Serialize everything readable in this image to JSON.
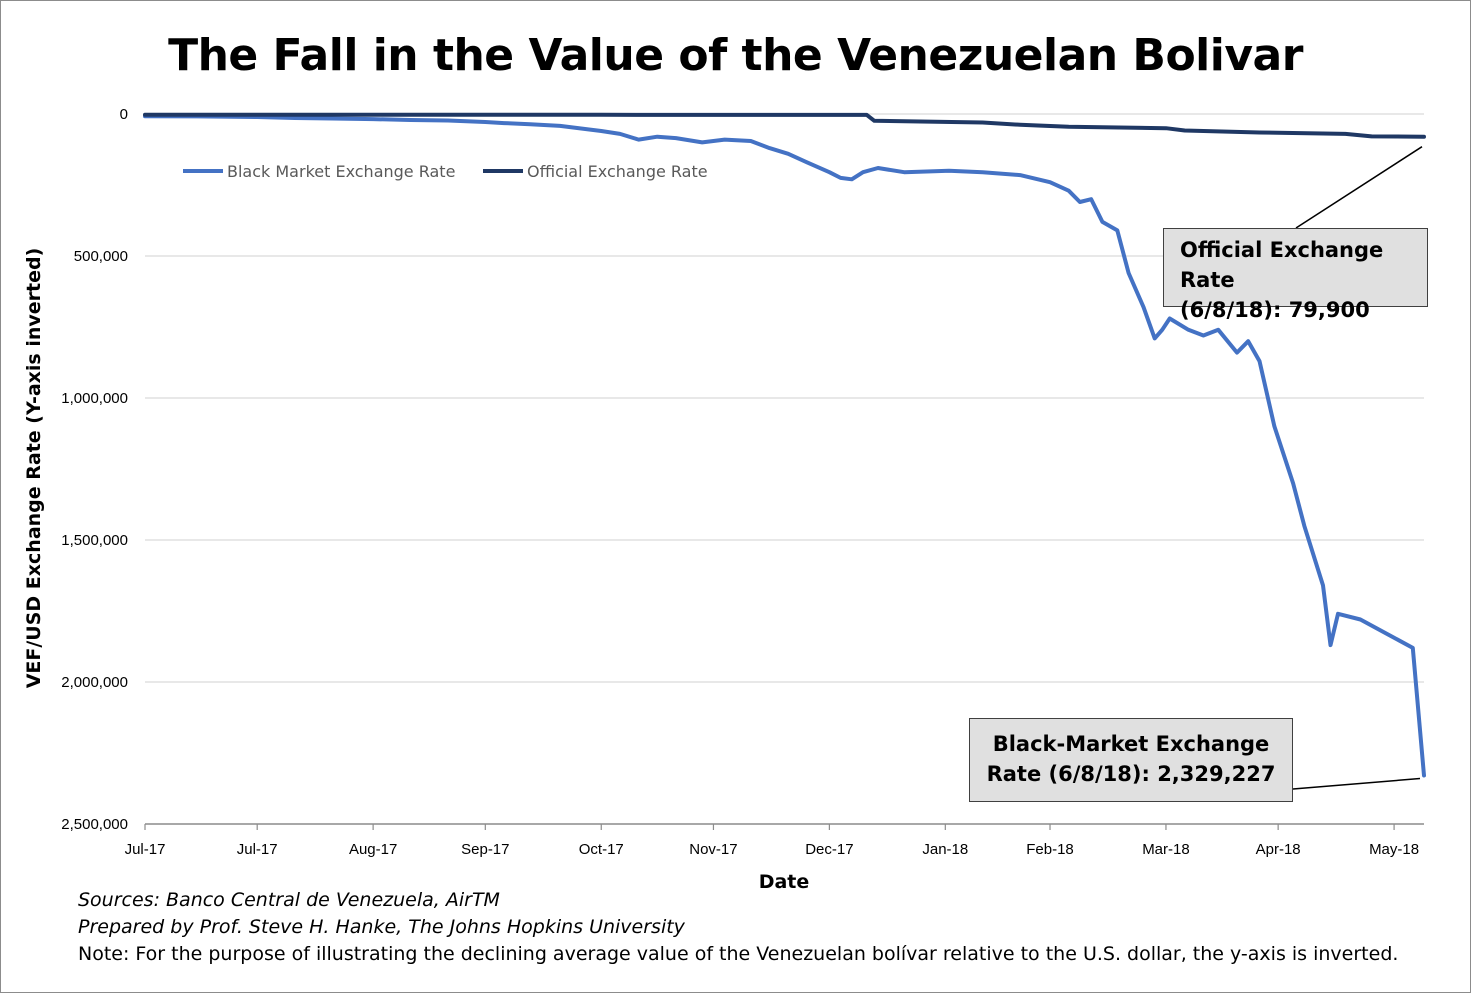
{
  "title": "The Fall in the Value of the Venezuelan Bolivar",
  "legend": {
    "black": "Black Market Exchange Rate",
    "official": "Official Exchange Rate"
  },
  "callouts": {
    "official_line1": "Official Exchange Rate",
    "official_line2": "(6/8/18): 79,900",
    "black_line1": "Black-Market Exchange",
    "black_line2": "Rate (6/8/18): 2,329,227"
  },
  "notes": {
    "sources": "Sources: Banco Central de Venezuela, AirTM",
    "prepared": "Prepared by Prof. Steve H. Hanke, The Johns Hopkins University",
    "note": "Note: For the purpose of illustrating the declining average value of the Venezuelan bolívar relative to the U.S. dollar, the y-axis is inverted."
  },
  "colors": {
    "black_market": "#4472c4",
    "official": "#1f3864",
    "grid": "#d9d9d9"
  },
  "chart_data": {
    "type": "line",
    "title": "The Fall in the Value of the Venezuelan Bolivar",
    "xlabel": "Date",
    "ylabel": "VEF/USD Exchange Rate (Y-axis inverted)",
    "y_inverted": true,
    "ylim": [
      0,
      2500000
    ],
    "yticks": [
      0,
      500000,
      1000000,
      1500000,
      2000000,
      2500000
    ],
    "ytick_labels": [
      "0",
      "500,000",
      "1,000,000",
      "1,500,000",
      "2,000,000",
      "2,500,000"
    ],
    "x_range": [
      "2017-07-01",
      "2018-06-08"
    ],
    "xticks": [
      "2017-07-01",
      "2017-07-31",
      "2017-08-31",
      "2017-09-30",
      "2017-10-31",
      "2017-11-30",
      "2017-12-31",
      "2018-01-31",
      "2018-02-28",
      "2018-03-31",
      "2018-04-30",
      "2018-05-31"
    ],
    "xtick_labels": [
      "Jul-17",
      "Jul-17",
      "Aug-17",
      "Sep-17",
      "Oct-17",
      "Nov-17",
      "Dec-17",
      "Jan-18",
      "Feb-18",
      "Mar-18",
      "Apr-18",
      "May-18"
    ],
    "grid": true,
    "legend_position": "top-left",
    "series": [
      {
        "name": "Black Market Exchange Rate",
        "points": [
          [
            "2017-07-01",
            7900
          ],
          [
            "2017-07-15",
            8500
          ],
          [
            "2017-07-31",
            10500
          ],
          [
            "2017-08-10",
            14000
          ],
          [
            "2017-08-20",
            16000
          ],
          [
            "2017-08-31",
            18000
          ],
          [
            "2017-09-10",
            21000
          ],
          [
            "2017-09-20",
            23000
          ],
          [
            "2017-09-30",
            28000
          ],
          [
            "2017-10-05",
            32000
          ],
          [
            "2017-10-12",
            36000
          ],
          [
            "2017-10-20",
            42000
          ],
          [
            "2017-10-31",
            60000
          ],
          [
            "2017-11-05",
            70000
          ],
          [
            "2017-11-10",
            90000
          ],
          [
            "2017-11-15",
            80000
          ],
          [
            "2017-11-20",
            85000
          ],
          [
            "2017-11-27",
            100000
          ],
          [
            "2017-12-03",
            90000
          ],
          [
            "2017-12-10",
            95000
          ],
          [
            "2017-12-15",
            120000
          ],
          [
            "2017-12-20",
            140000
          ],
          [
            "2017-12-25",
            170000
          ],
          [
            "2017-12-31",
            205000
          ],
          [
            "2018-01-03",
            225000
          ],
          [
            "2018-01-06",
            230000
          ],
          [
            "2018-01-09",
            205000
          ],
          [
            "2018-01-13",
            190000
          ],
          [
            "2018-01-20",
            205000
          ],
          [
            "2018-02-01",
            200000
          ],
          [
            "2018-02-10",
            205000
          ],
          [
            "2018-02-20",
            215000
          ],
          [
            "2018-02-28",
            240000
          ],
          [
            "2018-03-05",
            270000
          ],
          [
            "2018-03-08",
            310000
          ],
          [
            "2018-03-11",
            300000
          ],
          [
            "2018-03-14",
            380000
          ],
          [
            "2018-03-18",
            410000
          ],
          [
            "2018-03-21",
            560000
          ],
          [
            "2018-03-25",
            680000
          ],
          [
            "2018-03-28",
            790000
          ],
          [
            "2018-03-30",
            760000
          ],
          [
            "2018-04-01",
            720000
          ],
          [
            "2018-04-06",
            760000
          ],
          [
            "2018-04-10",
            780000
          ],
          [
            "2018-04-14",
            760000
          ],
          [
            "2018-04-19",
            840000
          ],
          [
            "2018-04-22",
            800000
          ],
          [
            "2018-04-25",
            870000
          ],
          [
            "2018-04-29",
            1100000
          ],
          [
            "2018-05-04",
            1300000
          ],
          [
            "2018-05-07",
            1450000
          ],
          [
            "2018-05-12",
            1660000
          ],
          [
            "2018-05-14",
            1870000
          ],
          [
            "2018-05-16",
            1760000
          ],
          [
            "2018-05-22",
            1780000
          ],
          [
            "2018-06-05",
            1880000
          ],
          [
            "2018-06-08",
            2329227
          ]
        ]
      },
      {
        "name": "Official Exchange Rate",
        "points": [
          [
            "2017-07-01",
            2640
          ],
          [
            "2017-10-31",
            2900
          ],
          [
            "2017-12-31",
            3345
          ],
          [
            "2018-01-10",
            3345
          ],
          [
            "2018-01-12",
            24000
          ],
          [
            "2018-02-10",
            30000
          ],
          [
            "2018-02-20",
            38000
          ],
          [
            "2018-03-05",
            45000
          ],
          [
            "2018-03-31",
            50000
          ],
          [
            "2018-04-05",
            58000
          ],
          [
            "2018-04-25",
            65000
          ],
          [
            "2018-05-18",
            70000
          ],
          [
            "2018-05-25",
            79000
          ],
          [
            "2018-06-08",
            79900
          ]
        ]
      }
    ]
  }
}
